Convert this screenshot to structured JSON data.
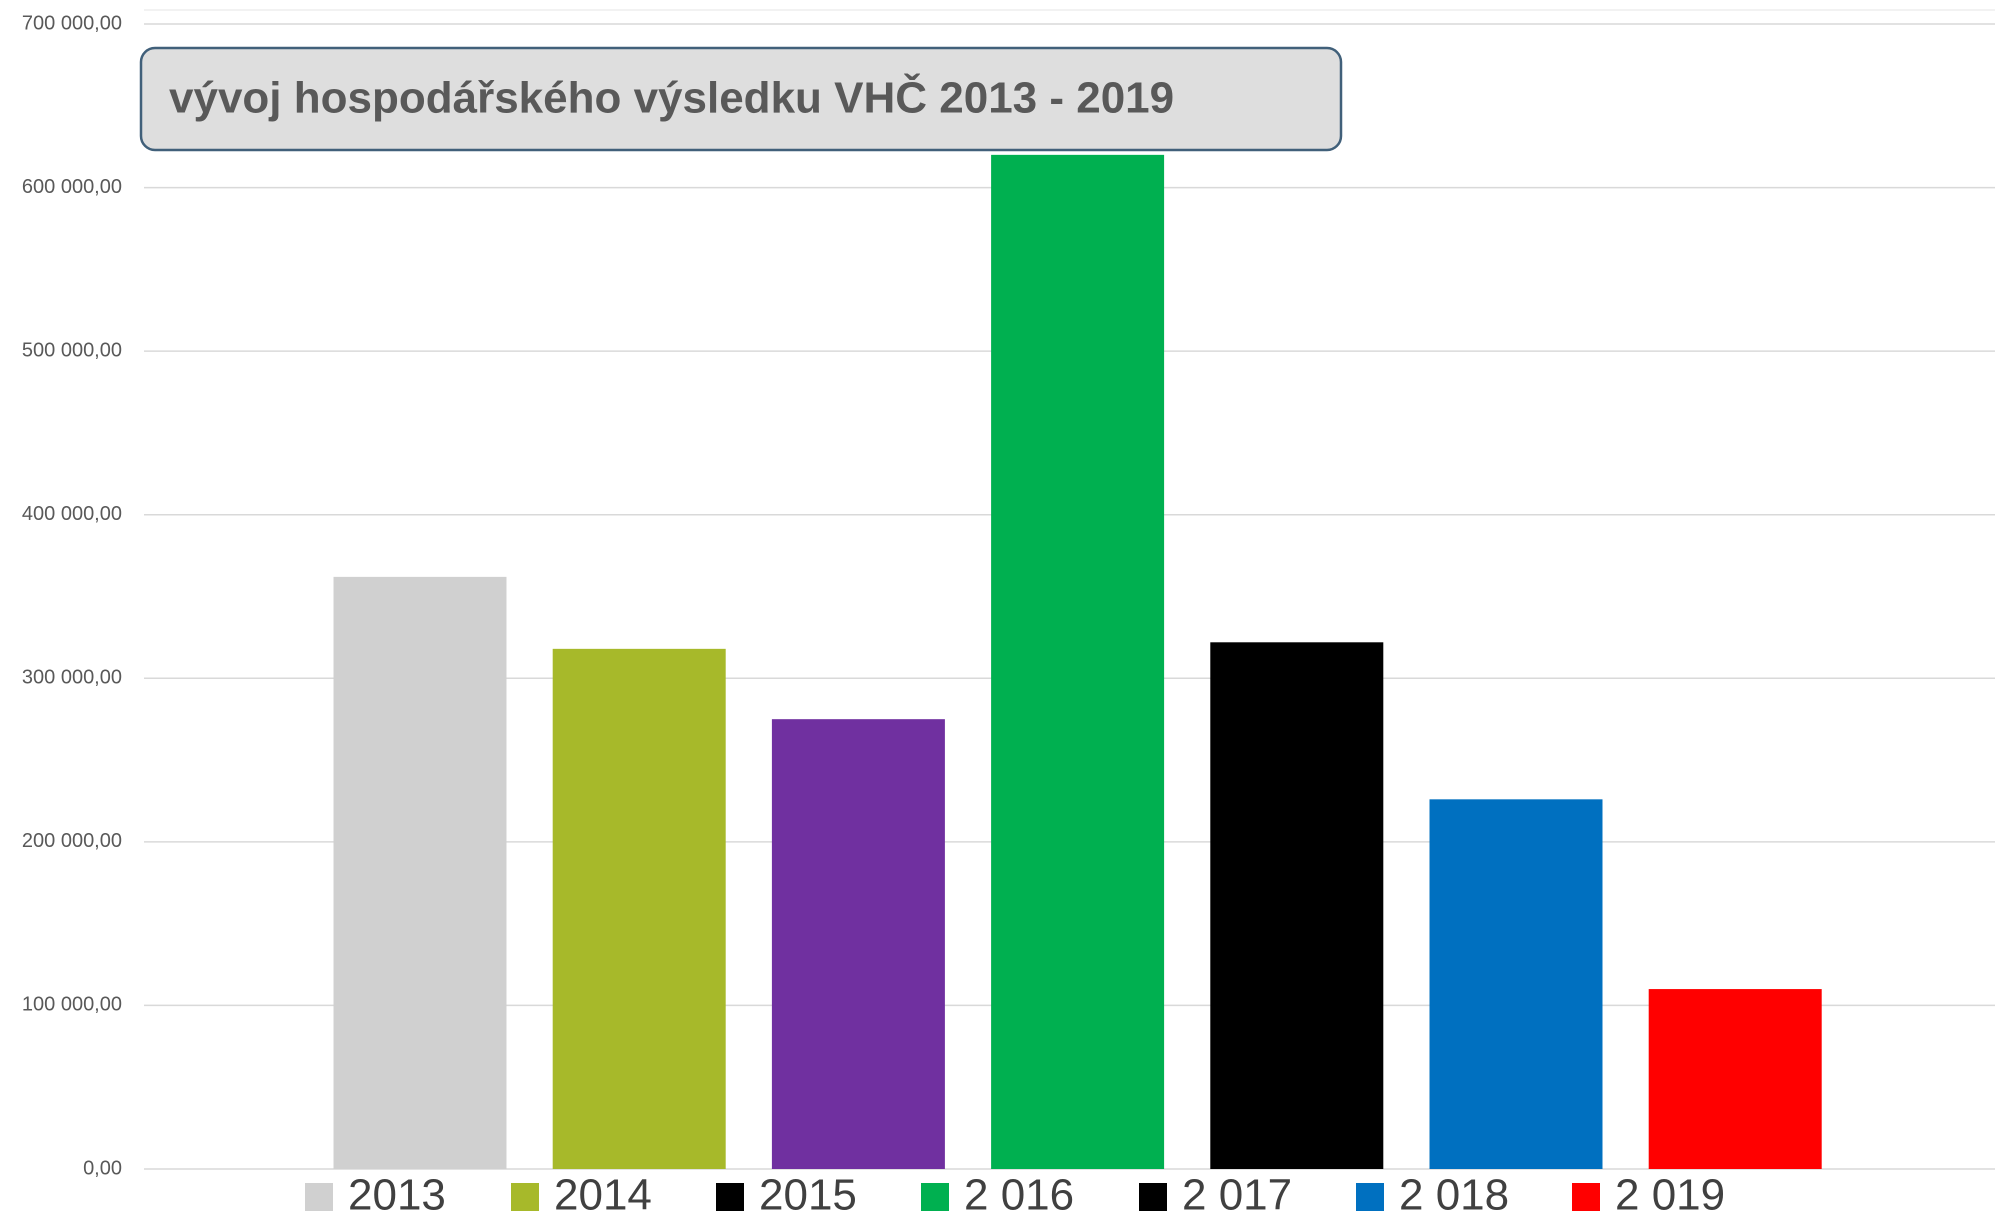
{
  "chart_data": {
    "type": "bar",
    "title": "vývoj hospodářského výsledku VHČ 2013 - 2019",
    "series": [
      {
        "name": "2013",
        "color": "#d0d0d0",
        "legend_color": "#d0d0d0",
        "values": [
          362000
        ]
      },
      {
        "name": "2014",
        "color": "#a7b92a",
        "legend_color": "#a7b92a",
        "values": [
          318000
        ]
      },
      {
        "name": "2015",
        "color": "#7030a0",
        "legend_color": "#000000",
        "values": [
          275000
        ]
      },
      {
        "name": "2 016",
        "color": "#00b050",
        "legend_color": "#00b050",
        "values": [
          620000
        ]
      },
      {
        "name": "2 017",
        "color": "#000000",
        "legend_color": "#000000",
        "values": [
          322000
        ]
      },
      {
        "name": "2 018",
        "color": "#0070c0",
        "legend_color": "#0070c0",
        "values": [
          226000
        ]
      },
      {
        "name": "2 019",
        "color": "#ff0000",
        "legend_color": "#ff0000",
        "values": [
          110000
        ]
      }
    ],
    "ylim": [
      0,
      700000
    ],
    "yticks": [
      {
        "value": 0,
        "label": "0,00"
      },
      {
        "value": 100000,
        "label": "100 000,00"
      },
      {
        "value": 200000,
        "label": "200 000,00"
      },
      {
        "value": 300000,
        "label": "300 000,00"
      },
      {
        "value": 400000,
        "label": "400 000,00"
      },
      {
        "value": 500000,
        "label": "500 000,00"
      },
      {
        "value": 600000,
        "label": "600 000,00"
      },
      {
        "value": 700000,
        "label": "700 000,00"
      }
    ],
    "grid": true
  }
}
